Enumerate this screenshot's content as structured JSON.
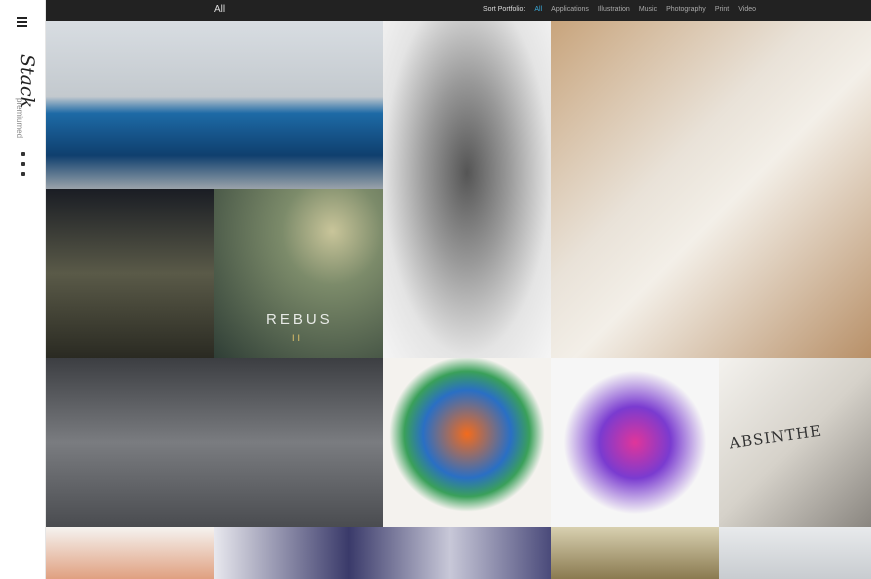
{
  "sidebar": {
    "logo": "Stack",
    "tagline": "premiumed"
  },
  "nav": {
    "current": "All",
    "sort_label": "Sort Portfolio:",
    "filters": [
      "All",
      "Applications",
      "Illustration",
      "Music",
      "Photography",
      "Print",
      "Video"
    ]
  },
  "tiles": {
    "rebus_title": "REBUS",
    "rebus_number": "II",
    "absinthe": "ABSINTHE"
  }
}
